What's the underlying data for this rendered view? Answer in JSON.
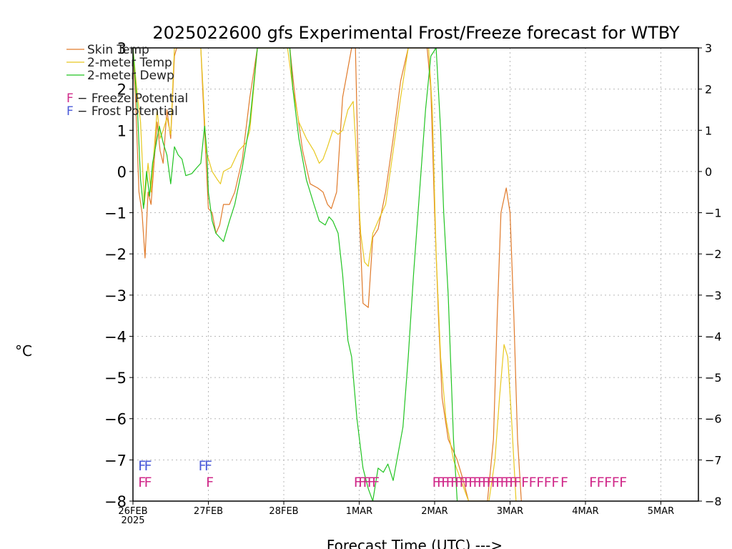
{
  "chart_data": {
    "type": "line",
    "title": "2025022600 gfs Experimental Frost/Freeze forecast for WTBY",
    "xlabel": "Forecast Time (UTC) --->",
    "ylabel": "°C",
    "ylim": [
      -8,
      3
    ],
    "xlim": [
      0,
      7.5
    ],
    "x_unit": "days since 26FEB 2025 00UTC",
    "grid": true,
    "y_ticks": [
      -8,
      -7,
      -6,
      -5,
      -4,
      -3,
      -2,
      -1,
      0,
      1,
      2,
      3
    ],
    "y_tick_labels": [
      "−8",
      "−7",
      "−6",
      "−5",
      "−4",
      "−3",
      "−2",
      "−1",
      "0",
      "1",
      "2",
      "3"
    ],
    "x_ticks": [
      {
        "x": 0,
        "label": "26FEB",
        "sublabel": "2025"
      },
      {
        "x": 1,
        "label": "27FEB",
        "sublabel": ""
      },
      {
        "x": 2,
        "label": "28FEB",
        "sublabel": ""
      },
      {
        "x": 3,
        "label": "1MAR",
        "sublabel": ""
      },
      {
        "x": 4,
        "label": "2MAR",
        "sublabel": ""
      },
      {
        "x": 5,
        "label": "3MAR",
        "sublabel": ""
      },
      {
        "x": 6,
        "label": "4MAR",
        "sublabel": ""
      },
      {
        "x": 7,
        "label": "5MAR",
        "sublabel": ""
      }
    ],
    "legend": [
      {
        "name": "Skin Temp",
        "color": "#e07a2a",
        "style": "line"
      },
      {
        "name": "2-meter Temp",
        "color": "#e8c820",
        "style": "line"
      },
      {
        "name": "2-meter Dewp",
        "color": "#22c422",
        "style": "line"
      },
      {
        "name": "F - Freeze Potential",
        "color": "#d02a8a",
        "style": "marker"
      },
      {
        "name": "F - Frost Potential",
        "color": "#4a5ad8",
        "style": "marker"
      }
    ],
    "legend_position": "top-left",
    "series": [
      {
        "name": "Skin Temp",
        "color": "#e07a2a",
        "points": [
          [
            0,
            3
          ],
          [
            0.04,
            1.5
          ],
          [
            0.08,
            -0.5
          ],
          [
            0.12,
            -1.0
          ],
          [
            0.16,
            -2.1
          ],
          [
            0.2,
            -0.5
          ],
          [
            0.24,
            -0.8
          ],
          [
            0.28,
            0.2
          ],
          [
            0.32,
            1.2
          ],
          [
            0.36,
            0.5
          ],
          [
            0.4,
            0.2
          ],
          [
            0.45,
            1.5
          ],
          [
            0.5,
            0.8
          ],
          [
            0.55,
            2.8
          ],
          [
            0.58,
            3
          ],
          [
            0.9,
            3
          ],
          [
            0.95,
            1.0
          ],
          [
            1.0,
            -0.9
          ],
          [
            1.05,
            -1.0
          ],
          [
            1.1,
            -1.5
          ],
          [
            1.15,
            -1.3
          ],
          [
            1.2,
            -0.8
          ],
          [
            1.28,
            -0.8
          ],
          [
            1.35,
            -0.5
          ],
          [
            1.45,
            0.3
          ],
          [
            1.55,
            1.8
          ],
          [
            1.65,
            3
          ],
          [
            2.08,
            3
          ],
          [
            2.15,
            1.8
          ],
          [
            2.25,
            0.5
          ],
          [
            2.35,
            -0.3
          ],
          [
            2.45,
            -0.4
          ],
          [
            2.52,
            -0.5
          ],
          [
            2.58,
            -0.8
          ],
          [
            2.63,
            -0.9
          ],
          [
            2.7,
            -0.5
          ],
          [
            2.78,
            1.8
          ],
          [
            2.9,
            3
          ],
          [
            2.95,
            3
          ],
          [
            3.0,
            -1.0
          ],
          [
            3.05,
            -3.2
          ],
          [
            3.12,
            -3.3
          ],
          [
            3.18,
            -1.6
          ],
          [
            3.25,
            -1.4
          ],
          [
            3.35,
            -0.5
          ],
          [
            3.45,
            0.8
          ],
          [
            3.55,
            2.2
          ],
          [
            3.65,
            3
          ],
          [
            3.9,
            3
          ],
          [
            3.95,
            2.0
          ],
          [
            4.0,
            -1.0
          ],
          [
            4.05,
            -3.5
          ],
          [
            4.1,
            -5.5
          ],
          [
            4.18,
            -6.5
          ],
          [
            4.3,
            -7.0
          ],
          [
            4.38,
            -7.5
          ],
          [
            4.45,
            -8
          ],
          [
            4.7,
            -8
          ],
          [
            4.78,
            -6.5
          ],
          [
            4.83,
            -3.5
          ],
          [
            4.88,
            -1.0
          ],
          [
            4.95,
            -0.4
          ],
          [
            5.0,
            -1.0
          ],
          [
            5.05,
            -3.5
          ],
          [
            5.1,
            -6.5
          ],
          [
            5.15,
            -8
          ]
        ]
      },
      {
        "name": "2-meter Temp",
        "color": "#e8c820",
        "points": [
          [
            0,
            3
          ],
          [
            0.05,
            2.0
          ],
          [
            0.1,
            1.2
          ],
          [
            0.15,
            -0.8
          ],
          [
            0.2,
            0.2
          ],
          [
            0.24,
            -0.5
          ],
          [
            0.28,
            0.5
          ],
          [
            0.32,
            1.5
          ],
          [
            0.36,
            0.8
          ],
          [
            0.4,
            1.0
          ],
          [
            0.45,
            1.3
          ],
          [
            0.5,
            0.9
          ],
          [
            0.55,
            3
          ],
          [
            0.9,
            3
          ],
          [
            0.93,
            2.0
          ],
          [
            0.97,
            0.5
          ],
          [
            1.05,
            0.0
          ],
          [
            1.12,
            -0.2
          ],
          [
            1.16,
            -0.3
          ],
          [
            1.2,
            0.0
          ],
          [
            1.3,
            0.1
          ],
          [
            1.4,
            0.5
          ],
          [
            1.5,
            0.7
          ],
          [
            1.55,
            1.0
          ],
          [
            1.65,
            3
          ],
          [
            2.05,
            3
          ],
          [
            2.12,
            2.0
          ],
          [
            2.2,
            1.2
          ],
          [
            2.3,
            0.8
          ],
          [
            2.4,
            0.5
          ],
          [
            2.47,
            0.2
          ],
          [
            2.52,
            0.3
          ],
          [
            2.58,
            0.6
          ],
          [
            2.65,
            1.0
          ],
          [
            2.72,
            0.9
          ],
          [
            2.78,
            1.0
          ],
          [
            2.85,
            1.5
          ],
          [
            2.92,
            1.7
          ],
          [
            2.97,
            0.2
          ],
          [
            3.02,
            -1.5
          ],
          [
            3.07,
            -2.2
          ],
          [
            3.12,
            -2.3
          ],
          [
            3.18,
            -1.5
          ],
          [
            3.25,
            -1.2
          ],
          [
            3.35,
            -0.8
          ],
          [
            3.45,
            0.5
          ],
          [
            3.55,
            1.8
          ],
          [
            3.65,
            3
          ],
          [
            3.92,
            3
          ],
          [
            3.97,
            1.5
          ],
          [
            4.02,
            -2.0
          ],
          [
            4.08,
            -4.5
          ],
          [
            4.15,
            -6.0
          ],
          [
            4.25,
            -7.0
          ],
          [
            4.35,
            -7.5
          ],
          [
            4.45,
            -8
          ],
          [
            4.72,
            -8
          ],
          [
            4.8,
            -7.0
          ],
          [
            4.86,
            -5.5
          ],
          [
            4.92,
            -4.2
          ],
          [
            4.97,
            -4.5
          ],
          [
            5.02,
            -6.0
          ],
          [
            5.08,
            -8
          ]
        ]
      },
      {
        "name": "2-meter Dewp",
        "color": "#22c422",
        "points": [
          [
            0,
            3
          ],
          [
            0.06,
            1.5
          ],
          [
            0.1,
            -0.2
          ],
          [
            0.14,
            -0.9
          ],
          [
            0.18,
            0.0
          ],
          [
            0.22,
            -0.6
          ],
          [
            0.26,
            0.2
          ],
          [
            0.3,
            0.6
          ],
          [
            0.35,
            1.1
          ],
          [
            0.4,
            0.7
          ],
          [
            0.45,
            0.4
          ],
          [
            0.5,
            -0.3
          ],
          [
            0.55,
            0.6
          ],
          [
            0.6,
            0.4
          ],
          [
            0.65,
            0.3
          ],
          [
            0.7,
            -0.1
          ],
          [
            0.78,
            -0.05
          ],
          [
            0.85,
            0.1
          ],
          [
            0.9,
            0.2
          ],
          [
            0.95,
            1.1
          ],
          [
            0.98,
            0.5
          ],
          [
            1.0,
            -0.5
          ],
          [
            1.05,
            -1.2
          ],
          [
            1.1,
            -1.5
          ],
          [
            1.15,
            -1.6
          ],
          [
            1.2,
            -1.7
          ],
          [
            1.28,
            -1.2
          ],
          [
            1.35,
            -0.8
          ],
          [
            1.45,
            0.1
          ],
          [
            1.55,
            1.2
          ],
          [
            1.65,
            3
          ],
          [
            2.08,
            3
          ],
          [
            2.12,
            2.0
          ],
          [
            2.2,
            0.8
          ],
          [
            2.3,
            -0.2
          ],
          [
            2.4,
            -0.8
          ],
          [
            2.47,
            -1.2
          ],
          [
            2.55,
            -1.3
          ],
          [
            2.6,
            -1.1
          ],
          [
            2.65,
            -1.2
          ],
          [
            2.72,
            -1.5
          ],
          [
            2.78,
            -2.5
          ],
          [
            2.85,
            -4.1
          ],
          [
            2.9,
            -4.5
          ],
          [
            2.97,
            -6.0
          ],
          [
            3.05,
            -7.2
          ],
          [
            3.12,
            -7.7
          ],
          [
            3.18,
            -8.0
          ],
          [
            3.25,
            -7.2
          ],
          [
            3.32,
            -7.3
          ],
          [
            3.38,
            -7.1
          ],
          [
            3.45,
            -7.5
          ],
          [
            3.52,
            -6.8
          ],
          [
            3.58,
            -6.2
          ],
          [
            3.65,
            -4.5
          ],
          [
            3.72,
            -2.5
          ],
          [
            3.8,
            -0.5
          ],
          [
            3.88,
            1.5
          ],
          [
            3.95,
            2.8
          ],
          [
            4.02,
            3
          ],
          [
            4.08,
            1.0
          ],
          [
            4.12,
            -1.0
          ],
          [
            4.18,
            -3.0
          ],
          [
            4.25,
            -6.5
          ],
          [
            4.3,
            -8
          ]
        ]
      }
    ],
    "markers": {
      "frost_positions": [
        0.12,
        0.2,
        0.92,
        1.0
      ],
      "freeze_positions": [
        0.12,
        0.2,
        1.02,
        2.98,
        3.04,
        3.1,
        3.16,
        3.22,
        4.02,
        4.08,
        4.14,
        4.2,
        4.26,
        4.32,
        4.38,
        4.44,
        4.5,
        4.56,
        4.62,
        4.68,
        4.74,
        4.8,
        4.86,
        4.92,
        4.98,
        5.04,
        5.1,
        5.2,
        5.3,
        5.4,
        5.5,
        5.6,
        5.72,
        6.1,
        6.2,
        6.3,
        6.4,
        6.5
      ],
      "letter": "F",
      "frost_y": -7.1,
      "freeze_y": -7.5
    }
  }
}
